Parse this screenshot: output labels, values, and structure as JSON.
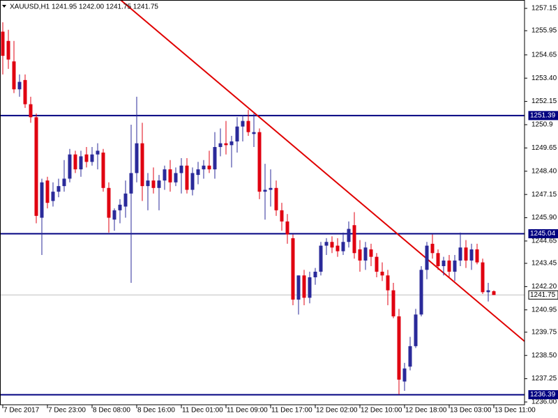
{
  "chart_data": {
    "type": "candlestick",
    "title": "XAUUSD,H1 1241.95 1242.00 1241.75 1241.75",
    "up_color": "#2a2a9a",
    "down_color": "#e00010",
    "categories": [
      "7 Dec 2017",
      null,
      null,
      null,
      null,
      null,
      null,
      null,
      "7 Dec 23:00",
      null,
      null,
      null,
      null,
      null,
      null,
      null,
      "8 Dec 08:00",
      null,
      null,
      null,
      null,
      null,
      null,
      null,
      "8 Dec 16:00",
      null,
      null,
      null,
      null,
      null,
      null,
      null,
      "11 Dec 01:00",
      null,
      null,
      null,
      null,
      null,
      null,
      null,
      "11 Dec 09:00",
      null,
      null,
      null,
      null,
      null,
      null,
      null,
      "11 Dec 17:00",
      null,
      null,
      null,
      null,
      null,
      null,
      null,
      "12 Dec 02:00",
      null,
      null,
      null,
      null,
      null,
      null,
      null,
      "12 Dec 10:00",
      null,
      null,
      null,
      null,
      null,
      null,
      null,
      "12 Dec 18:00",
      null,
      null,
      null,
      null,
      null,
      null,
      null,
      "13 Dec 03:00",
      null,
      null,
      null,
      null,
      null,
      null,
      null,
      "13 Dec 11:00"
    ],
    "open": [
      1255.9,
      1255.4,
      1254.3,
      1252.8,
      1253.3,
      1252.0,
      1251.3,
      1245.9,
      1247.9,
      1246.8,
      1247.3,
      1247.6,
      1248.0,
      1249.3,
      1248.5,
      1249.3,
      1248.9,
      1249.3,
      1249.4,
      1247.5,
      1245.8,
      1246.3,
      1246.5,
      1247.2,
      1248.3,
      1249.9,
      1247.6,
      1247.9,
      1247.5,
      1247.9,
      1248.5,
      1247.8,
      1248.3,
      1248.7,
      1247.4,
      1248.2,
      1248.5,
      1248.7,
      1248.5,
      1249.7,
      1249.9,
      1249.8,
      1250.0,
      1250.8,
      1251.1,
      1250.4,
      1250.5,
      1247.3,
      1247.4,
      1247.5,
      1246.3,
      1245.7,
      1244.8,
      1241.5,
      1242.8,
      1241.6,
      1242.7,
      1243.0,
      1244.4,
      1244.6,
      1244.4,
      1244.1,
      1244.6,
      1245.5,
      1244.2,
      1243.6,
      1244.2,
      1243.8,
      1243.0,
      1242.8,
      1242.0,
      1240.6,
      1237.1,
      1237.9,
      1239.0,
      1240.7,
      1243.1,
      1244.5,
      1244.0,
      1243.3,
      1243.6,
      1243.0,
      1243.6,
      1244.3,
      1243.6,
      1244.2,
      1243.5,
      1241.9,
      1241.95
    ],
    "high": [
      1256.4,
      1256.0,
      1255.4,
      1253.6,
      1253.6,
      1252.4,
      1251.5,
      1248.0,
      1248.1,
      1247.8,
      1248.0,
      1249.0,
      1249.6,
      1249.5,
      1249.5,
      1249.7,
      1249.7,
      1249.9,
      1249.6,
      1247.8,
      1246.4,
      1246.9,
      1247.9,
      1250.9,
      1252.4,
      1251.0,
      1248.3,
      1248.6,
      1248.2,
      1248.7,
      1249.0,
      1248.6,
      1249.1,
      1249.1,
      1248.6,
      1248.9,
      1249.0,
      1249.5,
      1250.5,
      1250.7,
      1251.1,
      1250.3,
      1251.3,
      1251.4,
      1251.7,
      1251.5,
      1250.7,
      1248.8,
      1248.5,
      1247.9,
      1246.7,
      1246.1,
      1245.0,
      1242.8,
      1243.1,
      1243.0,
      1243.2,
      1244.6,
      1244.8,
      1244.9,
      1244.8,
      1245.1,
      1245.7,
      1246.2,
      1244.7,
      1244.6,
      1244.5,
      1244.0,
      1243.5,
      1243.1,
      1242.4,
      1241.0,
      1238.1,
      1239.5,
      1241.0,
      1243.3,
      1244.6,
      1245.0,
      1244.2,
      1243.8,
      1243.9,
      1243.9,
      1245.1,
      1244.7,
      1244.5,
      1244.5,
      1243.7,
      1242.4,
      1242.0
    ],
    "low": [
      1253.6,
      1253.9,
      1252.6,
      1252.4,
      1251.8,
      1251.0,
      1245.6,
      1243.9,
      1246.4,
      1246.5,
      1247.0,
      1247.3,
      1247.8,
      1248.3,
      1248.1,
      1248.6,
      1248.7,
      1248.5,
      1247.3,
      1245.1,
      1245.2,
      1245.6,
      1245.9,
      1242.4,
      1247.8,
      1246.8,
      1246.3,
      1247.2,
      1246.3,
      1247.4,
      1247.3,
      1247.6,
      1247.2,
      1247.2,
      1247.1,
      1247.7,
      1248.0,
      1248.3,
      1248.0,
      1249.2,
      1249.3,
      1248.6,
      1249.4,
      1250.0,
      1250.3,
      1249.7,
      1246.9,
      1245.8,
      1246.5,
      1246.0,
      1245.2,
      1244.5,
      1241.2,
      1240.7,
      1241.2,
      1241.3,
      1242.3,
      1242.8,
      1243.9,
      1244.0,
      1243.8,
      1243.9,
      1244.3,
      1243.7,
      1243.0,
      1243.1,
      1243.3,
      1242.7,
      1242.5,
      1241.2,
      1240.5,
      1236.4,
      1236.6,
      1237.7,
      1238.9,
      1240.6,
      1242.6,
      1243.7,
      1243.1,
      1242.8,
      1242.7,
      1242.5,
      1243.3,
      1243.2,
      1243.1,
      1243.4,
      1241.8,
      1241.4,
      1241.75
    ],
    "close": [
      1254.6,
      1254.4,
      1252.8,
      1253.2,
      1252.0,
      1251.3,
      1246.0,
      1247.8,
      1246.7,
      1247.3,
      1247.6,
      1248.0,
      1249.3,
      1248.5,
      1249.2,
      1248.9,
      1249.3,
      1249.5,
      1247.5,
      1245.9,
      1246.3,
      1246.6,
      1247.2,
      1248.3,
      1249.9,
      1247.6,
      1247.9,
      1247.5,
      1247.9,
      1248.5,
      1247.8,
      1248.3,
      1248.7,
      1247.4,
      1248.3,
      1248.5,
      1248.7,
      1248.5,
      1249.7,
      1249.9,
      1249.8,
      1250.0,
      1250.8,
      1251.1,
      1250.5,
      1250.5,
      1247.3,
      1247.4,
      1247.5,
      1246.3,
      1245.7,
      1245.0,
      1241.5,
      1242.8,
      1241.6,
      1242.7,
      1243.0,
      1244.4,
      1244.6,
      1244.3,
      1244.1,
      1244.6,
      1245.3,
      1244.0,
      1243.6,
      1244.3,
      1243.8,
      1243.0,
      1242.8,
      1242.0,
      1240.6,
      1237.2,
      1237.8,
      1239.0,
      1240.7,
      1243.1,
      1244.4,
      1244.0,
      1243.3,
      1243.6,
      1243.0,
      1243.6,
      1244.3,
      1243.6,
      1244.2,
      1243.5,
      1241.9,
      1242.0,
      1241.75
    ],
    "xlim": [
      -0.5,
      93.5
    ],
    "ylim": [
      1235.85,
      1257.6
    ],
    "yticks": [
      1257.15,
      1255.95,
      1254.65,
      {
        "value": 1253.4,
        "label": "1253.40"
      },
      1252.15,
      1250.9,
      1249.65,
      {
        "value": 1248.4,
        "label": "1248.40"
      },
      1247.15,
      {
        "value": 1245.9,
        "label": "1245.90"
      },
      1244.65,
      1243.45,
      {
        "value": 1242.2,
        "label": "1242.20"
      },
      1240.95,
      1239.75,
      {
        "value": 1238.5,
        "label": "1238.50"
      },
      1237.25,
      {
        "value": 1236,
        "label": "1236.00"
      }
    ],
    "levels": [
      {
        "value": 1251.39,
        "color": "#000080"
      },
      {
        "value": 1245.04,
        "color": "#000080"
      },
      {
        "value": 1236.39,
        "color": "#000080"
      },
      {
        "value": 1241.75,
        "color": "#c0c0c0"
      }
    ],
    "trendline": {
      "color": "#e00000",
      "points": [
        {
          "x": 21.125,
          "y": 1257.6
        },
        {
          "x": 93.5,
          "y": 1239.26
        }
      ]
    }
  }
}
